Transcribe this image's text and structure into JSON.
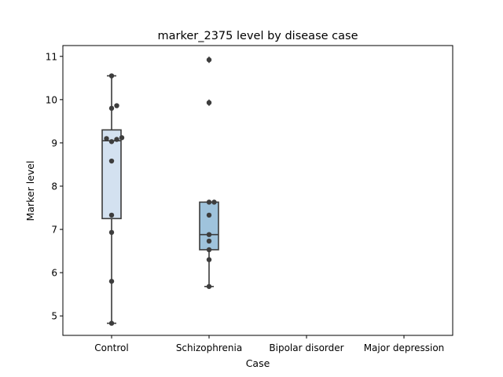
{
  "chart_data": {
    "type": "box",
    "title": "marker_2375 level by disease case",
    "xlabel": "Case",
    "ylabel": "Marker level",
    "ylim": [
      4.55,
      11.25
    ],
    "yticks": [
      5,
      6,
      7,
      8,
      9,
      10,
      11
    ],
    "categories": [
      "Control",
      "Schizophrenia",
      "Bipolar disorder",
      "Major depression"
    ],
    "boxes": [
      {
        "category": "Control",
        "whisker_low": 4.83,
        "q1": 7.25,
        "median": 9.05,
        "q3": 9.3,
        "whisker_high": 10.55,
        "fliers": []
      },
      {
        "category": "Schizophrenia",
        "whisker_low": 5.68,
        "q1": 6.53,
        "median": 6.88,
        "q3": 7.63,
        "whisker_high": 7.63,
        "fliers": [
          9.93,
          10.92
        ]
      },
      {
        "category": "Bipolar disorder",
        "empty": true
      },
      {
        "category": "Major depression",
        "empty": true
      }
    ],
    "points": [
      {
        "category": "Control",
        "values": [
          4.83,
          5.8,
          6.93,
          7.33,
          8.58,
          9.03,
          9.08,
          9.1,
          9.12,
          9.8,
          9.86,
          10.55
        ]
      },
      {
        "category": "Schizophrenia",
        "values": [
          5.68,
          6.3,
          6.53,
          6.73,
          6.88,
          7.33,
          7.63,
          7.63,
          9.93,
          10.92
        ]
      }
    ],
    "colors": {
      "box_fills": [
        "#d3e1f0",
        "#9fc3dc"
      ],
      "box_edge": "#3b3b3b",
      "points": "#3d3d3d"
    },
    "grid": false,
    "legend": "none"
  }
}
